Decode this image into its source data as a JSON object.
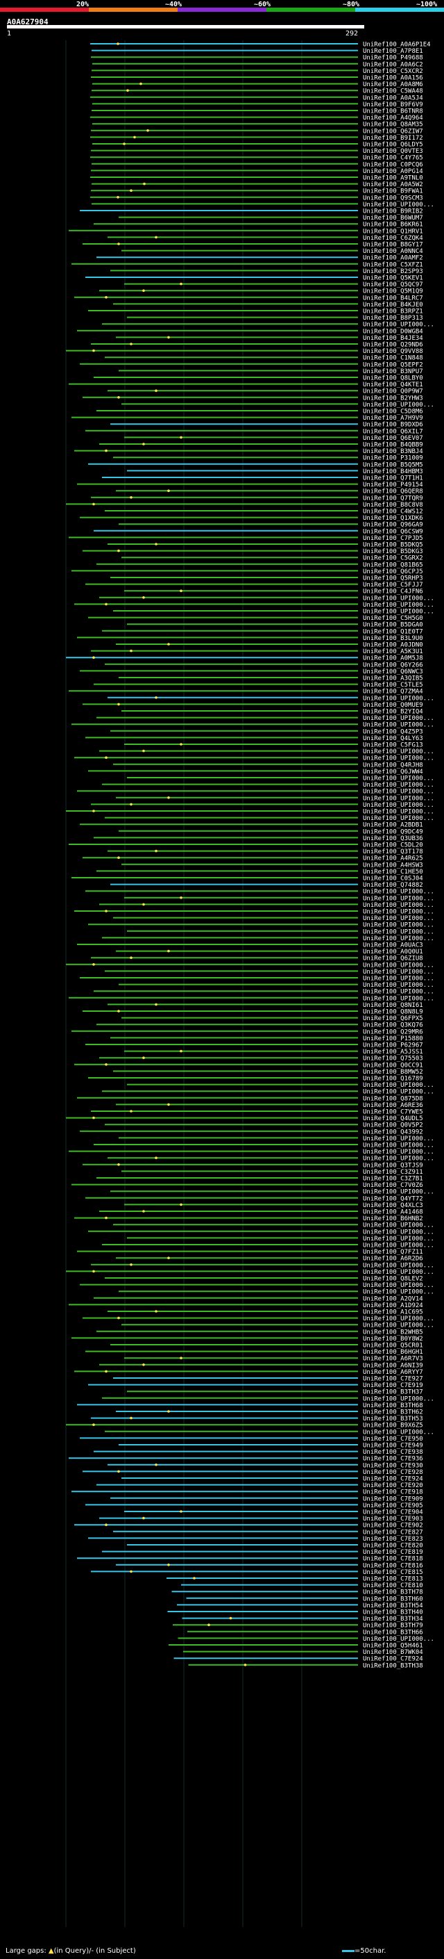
{
  "header": {
    "scale_labels": [
      "20%",
      "~40%",
      "~60%",
      "~80%",
      "~100%"
    ],
    "scale_colors": [
      "#e6192e",
      "#f07e14",
      "#8b2ad4",
      "#18a818",
      "#2ad0e8"
    ],
    "query_id": "A0A627904",
    "range_start": "1",
    "range_end": "292"
  },
  "colors": {
    "green": "#3dbb23",
    "blue": "#36c6e8",
    "white": "#ffffff",
    "grid": "#142a2a"
  },
  "hits": [
    {
      "label": "UniRef100_A0A6P1E4",
      "color": "blue"
    },
    {
      "label": "UniRef100_A7P8E1",
      "color": "blue"
    },
    {
      "label": "UniRef100_P49688",
      "color": "green"
    },
    {
      "label": "UniRef100_A0A6C2",
      "color": "green"
    },
    {
      "label": "UniRef100_C5XCR2",
      "color": "green"
    },
    {
      "label": "UniRef100_A0A156",
      "color": "green"
    },
    {
      "label": "UniRef100_A0A8M6",
      "color": "green"
    },
    {
      "label": "UniRef100_C5WA48",
      "color": "green"
    },
    {
      "label": "UniRef100_A0A5J4",
      "color": "green"
    },
    {
      "label": "UniRef100_B9F6V9",
      "color": "green"
    },
    {
      "label": "UniRef100_B6TNR8",
      "color": "green"
    },
    {
      "label": "UniRef100_A4Q964",
      "color": "green"
    },
    {
      "label": "UniRef100_Q8AM35",
      "color": "green"
    },
    {
      "label": "UniRef100_Q6ZIW7",
      "color": "green"
    },
    {
      "label": "UniRef100_B9I172",
      "color": "green"
    },
    {
      "label": "UniRef100_Q6LDY5",
      "color": "green"
    },
    {
      "label": "UniRef100_Q0VTE3",
      "color": "green"
    },
    {
      "label": "UniRef100_C4Y765",
      "color": "green"
    },
    {
      "label": "UniRef100_C0PCQ6",
      "color": "green"
    },
    {
      "label": "UniRef100_A0PG14",
      "color": "green"
    },
    {
      "label": "UniRef100_A9TNL0",
      "color": "green"
    },
    {
      "label": "UniRef100_A0A5W2",
      "color": "green"
    },
    {
      "label": "UniRef100_B9FWA1",
      "color": "green"
    },
    {
      "label": "UniRef100_Q9SCM3",
      "color": "green"
    },
    {
      "label": "UniRef100_UPI000...",
      "color": "green"
    },
    {
      "label": "UniRef100_B9RIB2",
      "color": "blue"
    },
    {
      "label": "UniRef100_B6WUM7",
      "color": "green"
    },
    {
      "label": "UniRef100_B6KR61",
      "color": "green"
    },
    {
      "label": "UniRef100_Q1HRV1",
      "color": "green"
    },
    {
      "label": "UniRef100_C6ZQK4",
      "color": "green"
    },
    {
      "label": "UniRef100_B8GY17",
      "color": "green"
    },
    {
      "label": "UniRef100_A0NNC4",
      "color": "green"
    },
    {
      "label": "UniRef100_A0AMF2",
      "color": "blue"
    },
    {
      "label": "UniRef100_C5XFZ1",
      "color": "green"
    },
    {
      "label": "UniRef100_B2SP93",
      "color": "green"
    },
    {
      "label": "UniRef100_Q5KEV1",
      "color": "blue"
    },
    {
      "label": "UniRef100_Q5QC97",
      "color": "green"
    },
    {
      "label": "UniRef100_Q5M1Q9",
      "color": "green"
    },
    {
      "label": "UniRef100_B4LRC7",
      "color": "green"
    },
    {
      "label": "UniRef100_B4KJE0",
      "color": "green"
    },
    {
      "label": "UniRef100_B3RPZ1",
      "color": "green"
    },
    {
      "label": "UniRef100_B8P313",
      "color": "green"
    },
    {
      "label": "UniRef100_UPI000...",
      "color": "green"
    },
    {
      "label": "UniRef100_D0WGB4",
      "color": "green"
    },
    {
      "label": "UniRef100_B4JE34",
      "color": "green"
    },
    {
      "label": "UniRef100_Q29ND6",
      "color": "green"
    },
    {
      "label": "UniRef100_Q9VV88",
      "color": "green"
    },
    {
      "label": "UniRef100_C1N848",
      "color": "green"
    },
    {
      "label": "UniRef100_Q5EPF2",
      "color": "green"
    },
    {
      "label": "UniRef100_B3NPU7",
      "color": "green"
    },
    {
      "label": "UniRef100_Q8LBY0",
      "color": "green"
    },
    {
      "label": "UniRef100_Q4KTE1",
      "color": "green"
    },
    {
      "label": "UniRef100_Q0P9W7",
      "color": "green"
    },
    {
      "label": "UniRef100_B2YHW3",
      "color": "green"
    },
    {
      "label": "UniRef100_UPI000...",
      "color": "green"
    },
    {
      "label": "UniRef100_C5D8M6",
      "color": "green"
    },
    {
      "label": "UniRef100_A7H9V9",
      "color": "green"
    },
    {
      "label": "UniRef100_B9DXD6",
      "color": "blue"
    },
    {
      "label": "UniRef100_Q6XIL7",
      "color": "green"
    },
    {
      "label": "UniRef100_Q6EV07",
      "color": "green"
    },
    {
      "label": "UniRef100_B4QBB9",
      "color": "green"
    },
    {
      "label": "UniRef100_B3NBJ4",
      "color": "green"
    },
    {
      "label": "UniRef100_P31009",
      "color": "green"
    },
    {
      "label": "UniRef100_B5Q5M5",
      "color": "blue"
    },
    {
      "label": "UniRef100_B4HBM3",
      "color": "blue"
    },
    {
      "label": "UniRef100_Q7T1H1",
      "color": "blue"
    },
    {
      "label": "UniRef100_P49154",
      "color": "green"
    },
    {
      "label": "UniRef100_Q6QER8",
      "color": "green"
    },
    {
      "label": "UniRef100_Q7TQR9",
      "color": "green"
    },
    {
      "label": "UniRef100_B8C8V8",
      "color": "green"
    },
    {
      "label": "UniRef100_C4WS12",
      "color": "green"
    },
    {
      "label": "UniRef100_Q1XDK6",
      "color": "green"
    },
    {
      "label": "UniRef100_Q96GA9",
      "color": "green"
    },
    {
      "label": "UniRef100_Q6CSW9",
      "color": "blue"
    },
    {
      "label": "UniRef100_C7PJD5",
      "color": "green"
    },
    {
      "label": "UniRef100_B5DKQ5",
      "color": "green"
    },
    {
      "label": "UniRef100_B5DKG3",
      "color": "green"
    },
    {
      "label": "UniRef100_C5GRX2",
      "color": "green"
    },
    {
      "label": "UniRef100_Q81B65",
      "color": "green"
    },
    {
      "label": "UniRef100_Q6CPJ5",
      "color": "green"
    },
    {
      "label": "UniRef100_Q5RHP3",
      "color": "green"
    },
    {
      "label": "UniRef100_C5FJJ7",
      "color": "green"
    },
    {
      "label": "UniRef100_C4JFN6",
      "color": "green"
    },
    {
      "label": "UniRef100_UPI000...",
      "color": "green"
    },
    {
      "label": "UniRef100_UPI000...",
      "color": "green"
    },
    {
      "label": "UniRef100_UPI000...",
      "color": "green"
    },
    {
      "label": "UniRef100_C5H5G0",
      "color": "green"
    },
    {
      "label": "UniRef100_B5DGA0",
      "color": "green"
    },
    {
      "label": "UniRef100_Q1E0T7",
      "color": "green"
    },
    {
      "label": "UniRef100_B3L9U0",
      "color": "green"
    },
    {
      "label": "UniRef100_A0JDN0",
      "color": "green"
    },
    {
      "label": "UniRef100_A5K3U1",
      "color": "green"
    },
    {
      "label": "UniRef100_A0M5J8",
      "color": "blue"
    },
    {
      "label": "UniRef100_Q6Y266",
      "color": "green"
    },
    {
      "label": "UniRef100_Q6NWC3",
      "color": "green"
    },
    {
      "label": "UniRef100_A3QIB5",
      "color": "green"
    },
    {
      "label": "UniRef100_C5TLE5",
      "color": "green"
    },
    {
      "label": "UniRef100_Q7ZMA4",
      "color": "green"
    },
    {
      "label": "UniRef100_UPI000...",
      "color": "blue"
    },
    {
      "label": "UniRef100_Q0MUE9",
      "color": "green"
    },
    {
      "label": "UniRef100_B2YIQ4",
      "color": "green"
    },
    {
      "label": "UniRef100_UPI000...",
      "color": "green"
    },
    {
      "label": "UniRef100_UPI000...",
      "color": "green"
    },
    {
      "label": "UniRef100_Q4Z5P3",
      "color": "green"
    },
    {
      "label": "UniRef100_Q4LY63",
      "color": "green"
    },
    {
      "label": "UniRef100_C5FG13",
      "color": "green"
    },
    {
      "label": "UniRef100_UPI000...",
      "color": "green"
    },
    {
      "label": "UniRef100_UPI000...",
      "color": "green"
    },
    {
      "label": "UniRef100_Q4RJH8",
      "color": "green"
    },
    {
      "label": "UniRef100_Q6JWW4",
      "color": "green"
    },
    {
      "label": "UniRef100_UPI000...",
      "color": "green"
    },
    {
      "label": "UniRef100_UPI000...",
      "color": "green"
    },
    {
      "label": "UniRef100_UPI000...",
      "color": "green"
    },
    {
      "label": "UniRef100_UPI000...",
      "color": "green"
    },
    {
      "label": "UniRef100_UPI000...",
      "color": "green"
    },
    {
      "label": "UniRef100_UPI000...",
      "color": "green"
    },
    {
      "label": "UniRef100_UPI000...",
      "color": "green"
    },
    {
      "label": "UniRef100_A2BDB1",
      "color": "green"
    },
    {
      "label": "UniRef100_Q9DC49",
      "color": "green"
    },
    {
      "label": "UniRef100_Q3UB36",
      "color": "green"
    },
    {
      "label": "UniRef100_C5DL20",
      "color": "green"
    },
    {
      "label": "UniRef100_Q3T178",
      "color": "green"
    },
    {
      "label": "UniRef100_A4R625",
      "color": "green"
    },
    {
      "label": "UniRef100_A4HSW3",
      "color": "green"
    },
    {
      "label": "UniRef100_C1HE50",
      "color": "green"
    },
    {
      "label": "UniRef100_C0SJ04",
      "color": "green"
    },
    {
      "label": "UniRef100_Q74882",
      "color": "blue"
    },
    {
      "label": "UniRef100_UPI000...",
      "color": "green"
    },
    {
      "label": "UniRef100_UPI000...",
      "color": "green"
    },
    {
      "label": "UniRef100_UPI000...",
      "color": "green"
    },
    {
      "label": "UniRef100_UPI000...",
      "color": "green"
    },
    {
      "label": "UniRef100_UPI000...",
      "color": "green"
    },
    {
      "label": "UniRef100_UPI000...",
      "color": "green"
    },
    {
      "label": "UniRef100_UPI000...",
      "color": "green"
    },
    {
      "label": "UniRef100_UPI000...",
      "color": "green"
    },
    {
      "label": "UniRef100_A0UAC3",
      "color": "green"
    },
    {
      "label": "UniRef100_A0Q0U1",
      "color": "green"
    },
    {
      "label": "UniRef100_Q6ZIU8",
      "color": "green"
    },
    {
      "label": "UniRef100_UPI000...",
      "color": "green"
    },
    {
      "label": "UniRef100_UPI000...",
      "color": "green"
    },
    {
      "label": "UniRef100_UPI000...",
      "color": "green"
    },
    {
      "label": "UniRef100_UPI000...",
      "color": "green"
    },
    {
      "label": "UniRef100_UPI000...",
      "color": "green"
    },
    {
      "label": "UniRef100_UPI000...",
      "color": "green"
    },
    {
      "label": "UniRef100_Q8NI61",
      "color": "green"
    },
    {
      "label": "UniRef100_Q8N8L9",
      "color": "green"
    },
    {
      "label": "UniRef100_Q6FPX5",
      "color": "green"
    },
    {
      "label": "UniRef100_Q3KQ76",
      "color": "green"
    },
    {
      "label": "UniRef100_Q29MR6",
      "color": "green"
    },
    {
      "label": "UniRef100_P15880",
      "color": "green"
    },
    {
      "label": "UniRef100_P62967",
      "color": "green"
    },
    {
      "label": "UniRef100_A5JSS1",
      "color": "green"
    },
    {
      "label": "UniRef100_Q75503",
      "color": "green"
    },
    {
      "label": "UniRef100_Q0CC91",
      "color": "green"
    },
    {
      "label": "UniRef100_B8MW52",
      "color": "green"
    },
    {
      "label": "UniRef100_Q16789",
      "color": "green"
    },
    {
      "label": "UniRef100_UPI000...",
      "color": "green"
    },
    {
      "label": "UniRef100_UPI000...",
      "color": "green"
    },
    {
      "label": "UniRef100_Q875D8",
      "color": "green"
    },
    {
      "label": "UniRef100_A6RE36",
      "color": "green"
    },
    {
      "label": "UniRef100_C7YWE5",
      "color": "green"
    },
    {
      "label": "UniRef100_Q4UDL5",
      "color": "green"
    },
    {
      "label": "UniRef100_Q0V5P2",
      "color": "green"
    },
    {
      "label": "UniRef100_Q43992",
      "color": "green"
    },
    {
      "label": "UniRef100_UPI000...",
      "color": "green"
    },
    {
      "label": "UniRef100_UPI000...",
      "color": "green"
    },
    {
      "label": "UniRef100_UPI000...",
      "color": "green"
    },
    {
      "label": "UniRef100_UPI000...",
      "color": "green"
    },
    {
      "label": "UniRef100_Q3TJS9",
      "color": "green"
    },
    {
      "label": "UniRef100_C3Z911",
      "color": "green"
    },
    {
      "label": "UniRef100_C3Z7B1",
      "color": "green"
    },
    {
      "label": "UniRef100_C7V0Z6",
      "color": "green"
    },
    {
      "label": "UniRef100_UPI000...",
      "color": "green"
    },
    {
      "label": "UniRef100_Q4YT72",
      "color": "green"
    },
    {
      "label": "UniRef100_Q4XLC3",
      "color": "green"
    },
    {
      "label": "UniRef100_A41468",
      "color": "green"
    },
    {
      "label": "UniRef100_B6HNB2",
      "color": "green"
    },
    {
      "label": "UniRef100_UPI000...",
      "color": "green"
    },
    {
      "label": "UniRef100_UPI000...",
      "color": "green"
    },
    {
      "label": "UniRef100_UPI000...",
      "color": "green"
    },
    {
      "label": "UniRef100_UPI000...",
      "color": "green"
    },
    {
      "label": "UniRef100_Q7FZ11",
      "color": "green"
    },
    {
      "label": "UniRef100_A6R2D6",
      "color": "green"
    },
    {
      "label": "UniRef100_UPI000...",
      "color": "green"
    },
    {
      "label": "UniRef100_UPI000...",
      "color": "green"
    },
    {
      "label": "UniRef100_Q8LEV2",
      "color": "green"
    },
    {
      "label": "UniRef100_UPI000...",
      "color": "green"
    },
    {
      "label": "UniRef100_UPI000...",
      "color": "green"
    },
    {
      "label": "UniRef100_A2QV14",
      "color": "green"
    },
    {
      "label": "UniRef100_A1D924",
      "color": "green"
    },
    {
      "label": "UniRef100_A1C695",
      "color": "green"
    },
    {
      "label": "UniRef100_UPI000...",
      "color": "green"
    },
    {
      "label": "UniRef100_UPI000...",
      "color": "green"
    },
    {
      "label": "UniRef100_B2WHB5",
      "color": "green"
    },
    {
      "label": "UniRef100_B0Y8W2",
      "color": "green"
    },
    {
      "label": "UniRef100_Q5CR01",
      "color": "green"
    },
    {
      "label": "UniRef100_B6HGH1",
      "color": "green"
    },
    {
      "label": "UniRef100_A6R7V3",
      "color": "green"
    },
    {
      "label": "UniRef100_A6NI39",
      "color": "green"
    },
    {
      "label": "UniRef100_A6RYY7",
      "color": "green"
    },
    {
      "label": "UniRef100_C7E927",
      "color": "blue"
    },
    {
      "label": "UniRef100_C7E919",
      "color": "blue"
    },
    {
      "label": "UniRef100_B3TH37",
      "color": "green"
    },
    {
      "label": "UniRef100_UPI000...",
      "color": "green"
    },
    {
      "label": "UniRef100_B3TH68",
      "color": "blue"
    },
    {
      "label": "UniRef100_B3TH62",
      "color": "blue"
    },
    {
      "label": "UniRef100_B3TH53",
      "color": "blue"
    },
    {
      "label": "UniRef100_B9X6Z5",
      "color": "green"
    },
    {
      "label": "UniRef100_UPI000...",
      "color": "green"
    },
    {
      "label": "UniRef100_C7E950",
      "color": "blue"
    },
    {
      "label": "UniRef100_C7E949",
      "color": "blue"
    },
    {
      "label": "UniRef100_C7E938",
      "color": "blue"
    },
    {
      "label": "UniRef100_C7E936",
      "color": "blue"
    },
    {
      "label": "UniRef100_C7E930",
      "color": "blue"
    },
    {
      "label": "UniRef100_C7E928",
      "color": "blue"
    },
    {
      "label": "UniRef100_C7E924",
      "color": "blue"
    },
    {
      "label": "UniRef100_C7E920",
      "color": "blue"
    },
    {
      "label": "UniRef100_C7E918",
      "color": "blue"
    },
    {
      "label": "UniRef100_C7E909",
      "color": "blue"
    },
    {
      "label": "UniRef100_C7E905",
      "color": "blue"
    },
    {
      "label": "UniRef100_C7E904",
      "color": "blue"
    },
    {
      "label": "UniRef100_C7E903",
      "color": "blue"
    },
    {
      "label": "UniRef100_C7E902",
      "color": "blue"
    },
    {
      "label": "UniRef100_C7E827",
      "color": "blue"
    },
    {
      "label": "UniRef100_C7E823",
      "color": "blue"
    },
    {
      "label": "UniRef100_C7E820",
      "color": "blue"
    },
    {
      "label": "UniRef100_C7E819",
      "color": "blue"
    },
    {
      "label": "UniRef100_C7E818",
      "color": "blue"
    },
    {
      "label": "UniRef100_C7E816",
      "color": "blue"
    },
    {
      "label": "UniRef100_C7E815",
      "color": "blue"
    },
    {
      "label": "UniRef100_C7E813",
      "color": "blue"
    },
    {
      "label": "UniRef100_C7E810",
      "color": "blue"
    },
    {
      "label": "UniRef100_B3TH78",
      "color": "blue"
    },
    {
      "label": "UniRef100_B3TH60",
      "color": "blue"
    },
    {
      "label": "UniRef100_B3TH54",
      "color": "blue"
    },
    {
      "label": "UniRef100_B3TH40",
      "color": "blue"
    },
    {
      "label": "UniRef100_B3TH34",
      "color": "blue"
    },
    {
      "label": "UniRef100_B3TH79",
      "color": "green"
    },
    {
      "label": "UniRef100_B3TH66",
      "color": "green"
    },
    {
      "label": "UniRef100_UPI000...",
      "color": "green"
    },
    {
      "label": "UniRef100_Q5H461",
      "color": "green"
    },
    {
      "label": "UniRef100_B7WK04",
      "color": "green"
    },
    {
      "label": "UniRef100_C7E924",
      "color": "blue"
    },
    {
      "label": "UniRef100_B3TH38",
      "color": "green"
    }
  ],
  "footer": {
    "left_text": "Large gaps: ",
    "gap_query": "(in Query)/",
    "gap_subject": "- (in Subject)",
    "legend_text": "=50char."
  }
}
